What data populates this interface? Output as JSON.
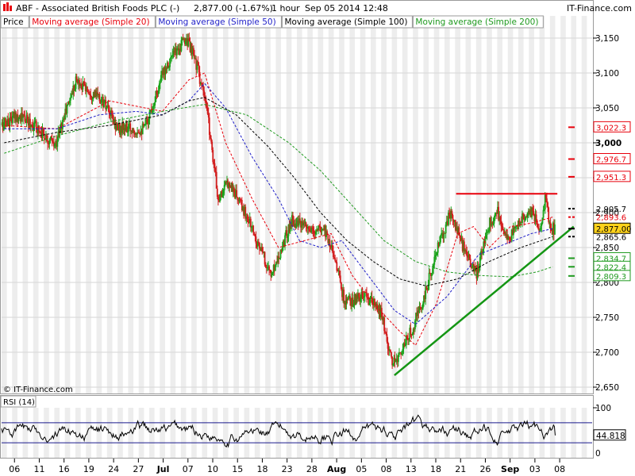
{
  "header": {
    "title": "ABF - Associated British Foods PLC (-)",
    "quote": "2,877.00 (-1.67%)",
    "interval": "1 hour",
    "datetime": "Sep 05 2014 12:48",
    "brand": "IT-Finance.com"
  },
  "legend": [
    {
      "label": "Price",
      "color": "#000000"
    },
    {
      "label": "Moving average (Simple 20)",
      "color": "#e8000b"
    },
    {
      "label": "Moving average (Simple 50)",
      "color": "#1f1fc8"
    },
    {
      "label": "Moving average (Simple 100)",
      "color": "#000000"
    },
    {
      "label": "Moving average (Simple 200)",
      "color": "#1f9a1f"
    }
  ],
  "watermark": "© IT-Finance.com",
  "colors": {
    "up": "#1aa31a",
    "down": "#d21e1e",
    "ma20": "#e8000b",
    "ma50": "#1f1fc8",
    "ma100": "#000000",
    "ma200": "#1f9a1f",
    "resistance": "#e8000b",
    "support": "#149614",
    "stripe": "#ededed",
    "rsi_line": "#000000",
    "rsi_band": "#1a1a8c"
  },
  "chart_data": [
    {
      "type": "candlestick",
      "title": "ABF - Associated British Foods PLC (-)",
      "interval": "1 hour",
      "ylim": [
        2640,
        3170
      ],
      "ytick_labels": [
        "3,150",
        "3,100",
        "3,050",
        "3,000",
        "2,950",
        "2,900",
        "2,850",
        "2,800",
        "2,750",
        "2,700",
        "2,650"
      ],
      "ytick_values": [
        3150,
        3100,
        3050,
        3000,
        2950,
        2900,
        2850,
        2800,
        2750,
        2700,
        2650
      ],
      "x_tick_labels": [
        "06",
        "11",
        "16",
        "19",
        "24",
        "27",
        "Jul",
        "07",
        "10",
        "15",
        "18",
        "23",
        "28",
        "Aug",
        "05",
        "08",
        "13",
        "18",
        "21",
        "26",
        "Sep",
        "03",
        "08"
      ],
      "price_keypoints": [
        {
          "session": 0,
          "close": 3025
        },
        {
          "session": 3,
          "close": 3040
        },
        {
          "session": 7,
          "close": 3020
        },
        {
          "session": 10,
          "close": 2995
        },
        {
          "session": 14,
          "close": 3090
        },
        {
          "session": 19,
          "close": 3060
        },
        {
          "session": 22,
          "close": 3020
        },
        {
          "session": 27,
          "close": 3020
        },
        {
          "session": 31,
          "close": 3110
        },
        {
          "session": 35,
          "close": 3150
        },
        {
          "session": 37,
          "close": 3110
        },
        {
          "session": 39,
          "close": 3040
        },
        {
          "session": 41,
          "close": 2920
        },
        {
          "session": 43,
          "close": 2945
        },
        {
          "session": 47,
          "close": 2885
        },
        {
          "session": 51,
          "close": 2810
        },
        {
          "session": 55,
          "close": 2890
        },
        {
          "session": 59,
          "close": 2870
        },
        {
          "session": 61,
          "close": 2880
        },
        {
          "session": 63,
          "close": 2840
        },
        {
          "session": 65,
          "close": 2770
        },
        {
          "session": 69,
          "close": 2780
        },
        {
          "session": 72,
          "close": 2755
        },
        {
          "session": 74,
          "close": 2680
        },
        {
          "session": 77,
          "close": 2720
        },
        {
          "session": 80,
          "close": 2775
        },
        {
          "session": 82,
          "close": 2835
        },
        {
          "session": 85,
          "close": 2900
        },
        {
          "session": 88,
          "close": 2840
        },
        {
          "session": 90,
          "close": 2810
        },
        {
          "session": 92,
          "close": 2880
        },
        {
          "session": 94,
          "close": 2900
        },
        {
          "session": 96,
          "close": 2860
        },
        {
          "session": 98,
          "close": 2885
        },
        {
          "session": 100,
          "close": 2905
        },
        {
          "session": 102,
          "close": 2880
        },
        {
          "session": 103,
          "close": 2920
        },
        {
          "session": 104,
          "close": 2877
        }
      ],
      "moving_averages": [
        {
          "name": "Moving average (Simple 20)",
          "color": "#e8000b",
          "keypoints": [
            [
              0,
              3025
            ],
            [
              10,
              3020
            ],
            [
              20,
              3060
            ],
            [
              30,
              3045
            ],
            [
              35,
              3090
            ],
            [
              38,
              3100
            ],
            [
              42,
              3000
            ],
            [
              47,
              2920
            ],
            [
              52,
              2850
            ],
            [
              57,
              2860
            ],
            [
              62,
              2870
            ],
            [
              66,
              2810
            ],
            [
              70,
              2770
            ],
            [
              75,
              2730
            ],
            [
              78,
              2710
            ],
            [
              82,
              2770
            ],
            [
              86,
              2870
            ],
            [
              89,
              2880
            ],
            [
              92,
              2850
            ],
            [
              96,
              2880
            ],
            [
              100,
              2885
            ],
            [
              104,
              2893.6
            ]
          ]
        },
        {
          "name": "Moving average (Simple 50)",
          "color": "#1f1fc8",
          "keypoints": [
            [
              0,
              3020
            ],
            [
              10,
              3020
            ],
            [
              18,
              3040
            ],
            [
              25,
              3045
            ],
            [
              30,
              3040
            ],
            [
              35,
              3060
            ],
            [
              38,
              3085
            ],
            [
              42,
              3050
            ],
            [
              47,
              2980
            ],
            [
              52,
              2920
            ],
            [
              56,
              2860
            ],
            [
              60,
              2850
            ],
            [
              64,
              2860
            ],
            [
              69,
              2810
            ],
            [
              74,
              2760
            ],
            [
              78,
              2740
            ],
            [
              84,
              2780
            ],
            [
              90,
              2840
            ],
            [
              95,
              2855
            ],
            [
              100,
              2870
            ],
            [
              104,
              2877
            ]
          ]
        },
        {
          "name": "Moving average (Simple 100)",
          "color": "#000000",
          "keypoints": [
            [
              0,
              3000
            ],
            [
              10,
              3015
            ],
            [
              20,
              3025
            ],
            [
              30,
              3040
            ],
            [
              35,
              3060
            ],
            [
              38,
              3065
            ],
            [
              44,
              3040
            ],
            [
              50,
              2995
            ],
            [
              55,
              2950
            ],
            [
              60,
              2900
            ],
            [
              65,
              2860
            ],
            [
              70,
              2830
            ],
            [
              75,
              2805
            ],
            [
              80,
              2795
            ],
            [
              86,
              2805
            ],
            [
              92,
              2830
            ],
            [
              98,
              2850
            ],
            [
              104,
              2865.6
            ]
          ]
        },
        {
          "name": "Moving average (Simple 200)",
          "color": "#1f9a1f",
          "keypoints": [
            [
              0,
              2985
            ],
            [
              10,
              3010
            ],
            [
              20,
              3030
            ],
            [
              30,
              3045
            ],
            [
              38,
              3055
            ],
            [
              46,
              3040
            ],
            [
              54,
              3000
            ],
            [
              60,
              2960
            ],
            [
              66,
              2910
            ],
            [
              72,
              2860
            ],
            [
              78,
              2830
            ],
            [
              84,
              2815
            ],
            [
              90,
              2810
            ],
            [
              96,
              2808
            ],
            [
              101,
              2815
            ],
            [
              104,
              2822.4
            ]
          ]
        }
      ],
      "annotations": {
        "resistance_level": 2927,
        "support_line": [
          {
            "session": 74,
            "value": 2667
          },
          {
            "session": 108,
            "value": 2880
          }
        ]
      },
      "price_marks_right": [
        {
          "value": 3022.3,
          "label": "3,022.3",
          "color": "#e8000b",
          "boxed": true
        },
        {
          "value": 2976.7,
          "label": "2,976.7",
          "color": "#e8000b",
          "boxed": true
        },
        {
          "value": 2951.3,
          "label": "2,951.3",
          "color": "#e8000b",
          "boxed": true
        },
        {
          "value": 2905.7,
          "label": "2,905.7",
          "color": "#000000",
          "boxed": false
        },
        {
          "value": 2893.6,
          "label": "2,893.6",
          "color": "#e8000b",
          "boxed": false
        },
        {
          "value": 2877.0,
          "label": "2,877.00",
          "color": "#000000",
          "boxed": true,
          "highlight": "#ffd21a"
        },
        {
          "value": 2865.6,
          "label": "2,865.6",
          "color": "#000000",
          "boxed": false
        },
        {
          "value": 2834.7,
          "label": "2,834.7",
          "color": "#1f9a1f",
          "boxed": true
        },
        {
          "value": 2822.4,
          "label": "2,822.4",
          "color": "#1f9a1f",
          "boxed": true
        },
        {
          "value": 2809.3,
          "label": "2,809.3",
          "color": "#1f9a1f",
          "boxed": true
        }
      ],
      "right_marks_dash": [
        3022.3,
        2976.7,
        2951.3,
        2905.7,
        2893.6,
        2877.0,
        2865.6,
        2834.7,
        2822.4,
        2809.3
      ]
    },
    {
      "type": "line",
      "title": "RSI (14)",
      "ylim": [
        0,
        100
      ],
      "ytick_labels": [
        "100",
        "0"
      ],
      "band_levels": [
        70,
        30
      ],
      "last_value": 44.818,
      "last_label": "44.818"
    }
  ]
}
